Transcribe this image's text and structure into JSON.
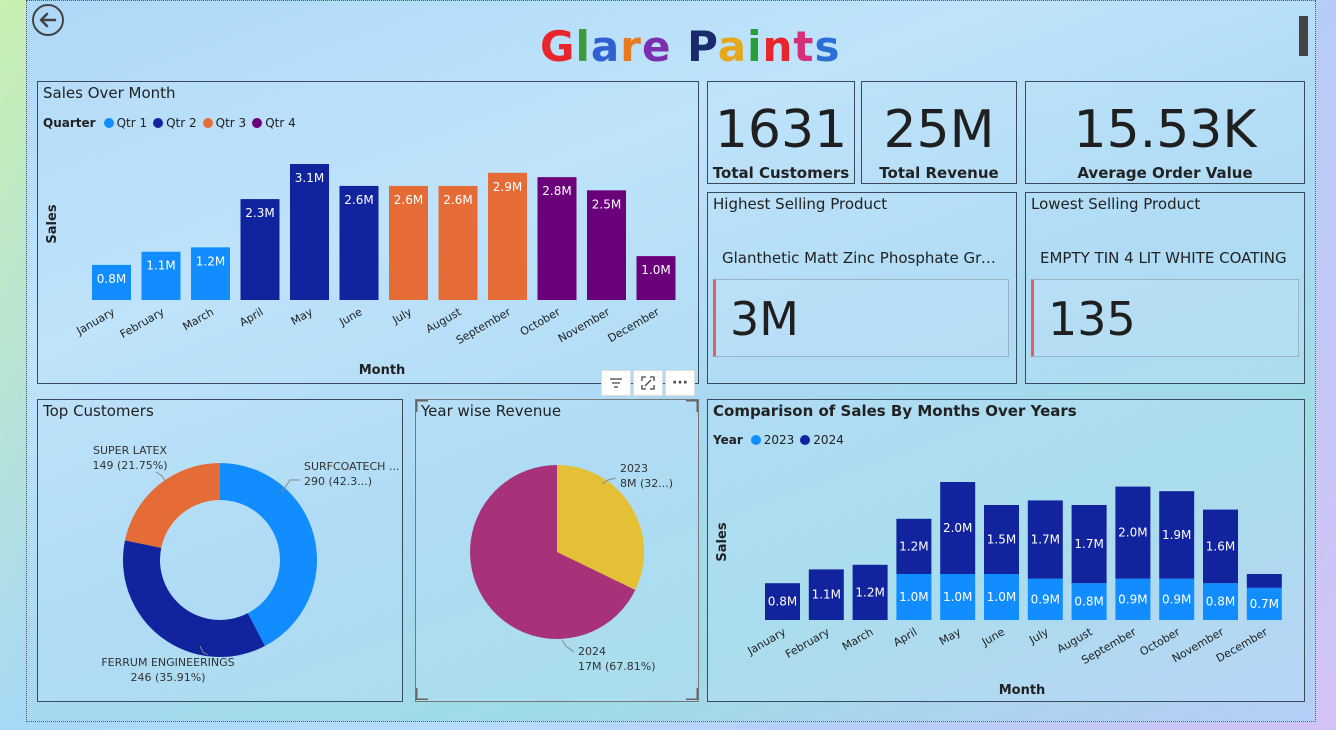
{
  "page": {
    "title": "Glare Paints",
    "title_letters": [
      {
        "ch": "G",
        "color": "#e8242d"
      },
      {
        "ch": "l",
        "color": "#3b9a3b"
      },
      {
        "ch": "a",
        "color": "#2f5fd0"
      },
      {
        "ch": "r",
        "color": "#e87a20"
      },
      {
        "ch": "e",
        "color": "#7a2fb0"
      },
      {
        "ch": " ",
        "color": "#000000"
      },
      {
        "ch": "P",
        "color": "#1a2a6c"
      },
      {
        "ch": "a",
        "color": "#e4a81a"
      },
      {
        "ch": "i",
        "color": "#2a9d3a"
      },
      {
        "ch": "n",
        "color": "#e8242d"
      },
      {
        "ch": "t",
        "color": "#d6307a"
      },
      {
        "ch": "s",
        "color": "#2a6fd6"
      }
    ],
    "back_icon": "arrow-left-circle-icon"
  },
  "kpis": {
    "total_customers": {
      "value": "1631",
      "label": "Total Customers"
    },
    "total_revenue": {
      "value": "25M",
      "label": "Total Revenue"
    },
    "avg_order_value": {
      "value": "15.53K",
      "label": "Average Order Value"
    }
  },
  "highest_product": {
    "title": "Highest Selling Product",
    "name": "Glanthetic Matt Zinc Phosphate Gre...",
    "value": "3M"
  },
  "lowest_product": {
    "title": "Lowest Selling Product",
    "name": "EMPTY TIN 4 LIT WHITE COATING",
    "value": "135"
  },
  "toolbar": {
    "filter_icon": "filter-icon",
    "focus_icon": "focus-mode-icon",
    "more_icon": "more-options-icon",
    "more_label": "···"
  },
  "colors": {
    "qtr1": "#118dff",
    "qtr2": "#12239e",
    "qtr3": "#e66c37",
    "qtr4": "#6b007b",
    "y2023": "#118dff",
    "y2024": "#12239e",
    "pie2023": "#e3c035",
    "pie2024": "#a8327a"
  },
  "chart_data": [
    {
      "id": "sales_over_month",
      "type": "bar",
      "title": "Sales Over Month",
      "xlabel": "Month",
      "ylabel": "Sales",
      "legend_title": "Quarter",
      "legend": [
        "Qtr 1",
        "Qtr 2",
        "Qtr 3",
        "Qtr 4"
      ],
      "categories": [
        "January",
        "February",
        "March",
        "April",
        "May",
        "June",
        "July",
        "August",
        "September",
        "October",
        "November",
        "December"
      ],
      "values": [
        0.8,
        1.1,
        1.2,
        2.3,
        3.1,
        2.6,
        2.6,
        2.6,
        2.9,
        2.8,
        2.5,
        1.0
      ],
      "labels": [
        "0.8M",
        "1.1M",
        "1.2M",
        "2.3M",
        "3.1M",
        "2.6M",
        "2.6M",
        "2.6M",
        "2.9M",
        "2.8M",
        "2.5M",
        "1.0M"
      ],
      "quarter": [
        1,
        1,
        1,
        2,
        2,
        2,
        3,
        3,
        3,
        4,
        4,
        4
      ],
      "ylim": [
        0,
        3.1
      ]
    },
    {
      "id": "top_customers",
      "type": "pie",
      "title": "Top Customers",
      "donut": true,
      "slices": [
        {
          "name": "SURFCOATECH ...",
          "value": 290,
          "label": "290 (42.3...)",
          "color": "#118dff"
        },
        {
          "name": "FERRUM ENGINEERINGS",
          "value": 246,
          "label": "246 (35.91%)",
          "color": "#12239e"
        },
        {
          "name": "SUPER LATEX",
          "value": 149,
          "label": "149 (21.75%)",
          "color": "#e66c37"
        }
      ]
    },
    {
      "id": "year_wise_revenue",
      "type": "pie",
      "title": "Year wise Revenue",
      "slices": [
        {
          "name": "2023",
          "value": 32.19,
          "label": "8M (32...)",
          "color": "#e3c035"
        },
        {
          "name": "2024",
          "value": 67.81,
          "label": "17M (67.81%)",
          "color": "#a8327a"
        }
      ]
    },
    {
      "id": "comparison_by_months",
      "type": "bar",
      "stacked": true,
      "title": "Comparison of Sales By Months Over Years",
      "xlabel": "Month",
      "ylabel": "Sales",
      "legend_title": "Year",
      "categories": [
        "January",
        "February",
        "March",
        "April",
        "May",
        "June",
        "July",
        "August",
        "September",
        "October",
        "November",
        "December"
      ],
      "series": [
        {
          "name": "2023",
          "values": [
            0.0,
            0.0,
            0.0,
            1.0,
            1.0,
            1.0,
            0.9,
            0.8,
            0.9,
            0.9,
            0.8,
            0.7
          ],
          "labels": [
            "",
            "",
            "",
            "1.0M",
            "1.0M",
            "1.0M",
            "0.9M",
            "0.8M",
            "0.9M",
            "0.9M",
            "0.8M",
            "0.7M"
          ]
        },
        {
          "name": "2024",
          "values": [
            0.8,
            1.1,
            1.2,
            1.2,
            2.0,
            1.5,
            1.7,
            1.7,
            2.0,
            1.9,
            1.6,
            0.3
          ],
          "labels": [
            "0.8M",
            "1.1M",
            "1.2M",
            "1.2M",
            "2.0M",
            "1.5M",
            "1.7M",
            "1.7M",
            "2.0M",
            "1.9M",
            "1.6M",
            ""
          ]
        }
      ]
    }
  ]
}
